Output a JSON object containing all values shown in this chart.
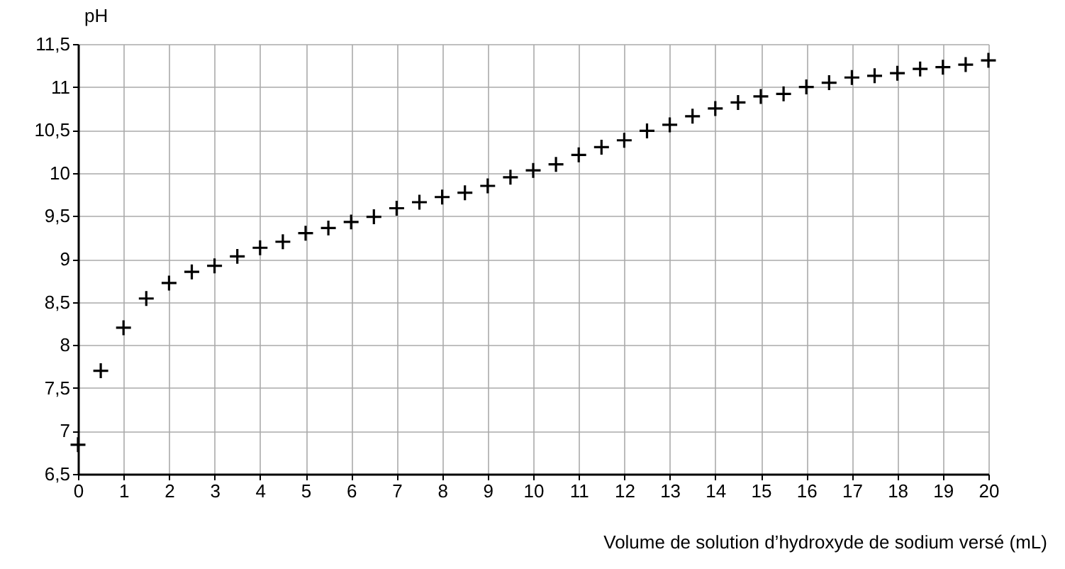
{
  "chart_data": {
    "type": "scatter",
    "xlabel": "Volume de solution d’hydroxyde de sodium versé (mL)",
    "ylabel": "pH",
    "x": [
      0,
      0.5,
      1,
      1.5,
      2,
      2.5,
      3,
      3.5,
      4,
      4.5,
      5,
      5.5,
      6,
      6.5,
      7,
      7.5,
      8,
      8.5,
      9,
      9.5,
      10,
      10.5,
      11,
      11.5,
      12,
      12.5,
      13,
      13.5,
      14,
      14.5,
      15,
      15.5,
      16,
      16.5,
      17,
      17.5,
      18,
      18.5,
      19,
      19.5,
      20
    ],
    "values": [
      6.84,
      7.7,
      8.2,
      8.54,
      8.72,
      8.85,
      8.92,
      9.03,
      9.13,
      9.2,
      9.3,
      9.36,
      9.43,
      9.49,
      9.59,
      9.66,
      9.72,
      9.77,
      9.85,
      9.95,
      10.03,
      10.1,
      10.21,
      10.3,
      10.38,
      10.49,
      10.56,
      10.66,
      10.75,
      10.82,
      10.89,
      10.92,
      11.0,
      11.05,
      11.11,
      11.13,
      11.16,
      11.21,
      11.23,
      11.26,
      11.31
    ],
    "color": "#000000",
    "marker": "cross",
    "grid": true,
    "xlim": [
      0,
      20
    ],
    "xticks": [
      0,
      1,
      2,
      3,
      4,
      5,
      6,
      7,
      8,
      9,
      10,
      11,
      12,
      13,
      14,
      15,
      16,
      17,
      18,
      19,
      20
    ],
    "ylim": [
      6.5,
      11.5
    ],
    "yticks": [
      {
        "value": 6.5,
        "label": "6,5"
      },
      7,
      {
        "value": 7.5,
        "label": "7,5"
      },
      8,
      {
        "value": 8.5,
        "label": "8,5"
      },
      9,
      {
        "value": 9.5,
        "label": "9,5"
      },
      10,
      {
        "value": 10.5,
        "label": "10,5"
      },
      11,
      {
        "value": 11.5,
        "label": "11,5"
      }
    ]
  }
}
